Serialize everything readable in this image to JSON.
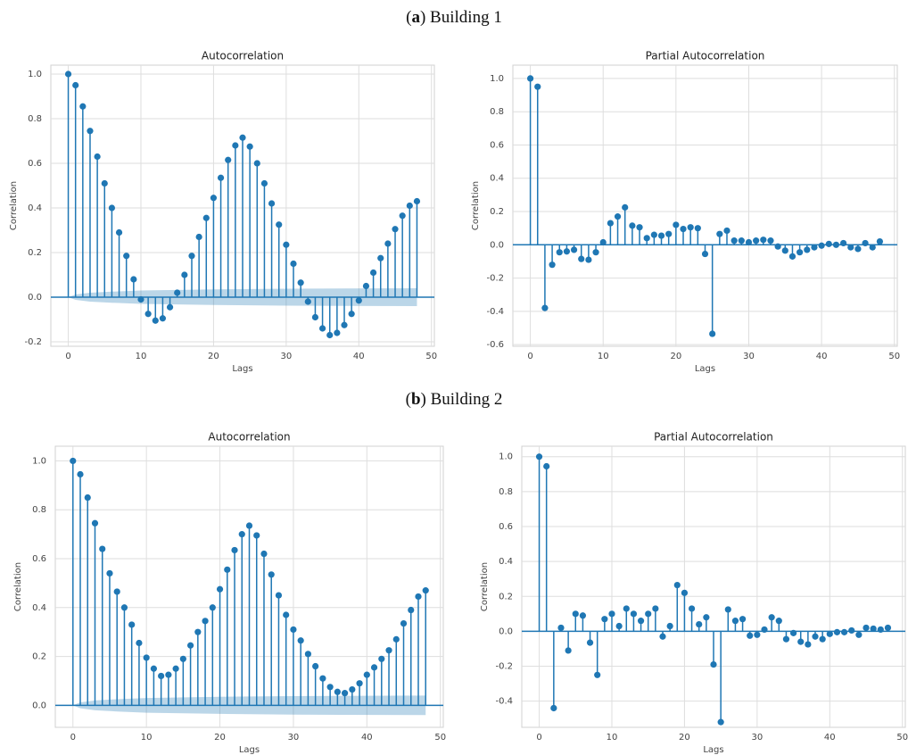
{
  "captions": [
    [
      "(",
      "a",
      ") Building 1"
    ],
    [
      "(",
      "b",
      ") Building 2"
    ]
  ],
  "chart_data": [
    {
      "type": "stem",
      "title": "Autocorrelation",
      "xlabel": "Lags",
      "ylabel": "Correlation",
      "color": "#1f77b4",
      "grid": true,
      "x": [
        0,
        1,
        2,
        3,
        4,
        5,
        6,
        7,
        8,
        9,
        10,
        11,
        12,
        13,
        14,
        15,
        16,
        17,
        18,
        19,
        20,
        21,
        22,
        23,
        24,
        25,
        26,
        27,
        28,
        29,
        30,
        31,
        32,
        33,
        34,
        35,
        36,
        37,
        38,
        39,
        40,
        41,
        42,
        43,
        44,
        45,
        46,
        47,
        48
      ],
      "values": [
        1.0,
        0.95,
        0.855,
        0.745,
        0.63,
        0.51,
        0.4,
        0.29,
        0.185,
        0.08,
        -0.01,
        -0.075,
        -0.105,
        -0.095,
        -0.045,
        0.02,
        0.1,
        0.185,
        0.27,
        0.355,
        0.445,
        0.535,
        0.615,
        0.68,
        0.715,
        0.675,
        0.6,
        0.51,
        0.42,
        0.325,
        0.235,
        0.15,
        0.065,
        -0.02,
        -0.09,
        -0.14,
        -0.17,
        -0.16,
        -0.125,
        -0.075,
        -0.015,
        0.05,
        0.11,
        0.175,
        0.24,
        0.305,
        0.365,
        0.41,
        0.43
      ],
      "band": {
        "x": [
          0,
          1,
          3,
          6,
          10,
          20,
          30,
          48
        ],
        "half_width": [
          0.0,
          0.012,
          0.02,
          0.025,
          0.03,
          0.035,
          0.038,
          0.04
        ]
      },
      "xlim": [
        -2.4,
        50.4
      ],
      "ylim": [
        -0.22,
        1.04
      ],
      "xticks": [
        0,
        10,
        20,
        30,
        40,
        50
      ],
      "yticks": [
        -0.2,
        {
          "value": 0,
          "label": "0.0"
        },
        0.2,
        0.4,
        0.6,
        0.8,
        {
          "value": 1,
          "label": "1.0"
        }
      ]
    },
    {
      "type": "stem",
      "title": "Partial Autocorrelation",
      "xlabel": "Lags",
      "ylabel": "Correlation",
      "color": "#1f77b4",
      "grid": true,
      "x": [
        0,
        1,
        2,
        3,
        4,
        5,
        6,
        7,
        8,
        9,
        10,
        11,
        12,
        13,
        14,
        15,
        16,
        17,
        18,
        19,
        20,
        21,
        22,
        23,
        24,
        25,
        26,
        27,
        28,
        29,
        30,
        31,
        32,
        33,
        34,
        35,
        36,
        37,
        38,
        39,
        40,
        41,
        42,
        43,
        44,
        45,
        46,
        47,
        48
      ],
      "values": [
        1.0,
        0.95,
        -0.38,
        -0.12,
        -0.045,
        -0.04,
        -0.03,
        -0.085,
        -0.09,
        -0.045,
        0.015,
        0.13,
        0.17,
        0.225,
        0.115,
        0.105,
        0.04,
        0.06,
        0.055,
        0.065,
        0.12,
        0.095,
        0.105,
        0.1,
        -0.055,
        -0.535,
        0.065,
        0.085,
        0.025,
        0.025,
        0.015,
        0.025,
        0.03,
        0.025,
        -0.01,
        -0.035,
        -0.07,
        -0.045,
        -0.03,
        -0.015,
        -0.005,
        0.005,
        0.0,
        0.01,
        -0.015,
        -0.025,
        0.01,
        -0.015,
        0.02
      ],
      "xlim": [
        -2.4,
        50.4
      ],
      "ylim": [
        -0.61,
        1.08
      ],
      "xticks": [
        0,
        10,
        20,
        30,
        40,
        50
      ],
      "yticks": [
        -0.6,
        -0.4,
        -0.2,
        {
          "value": 0,
          "label": "0.0"
        },
        0.2,
        0.4,
        0.6,
        0.8,
        {
          "value": 1,
          "label": "1.0"
        }
      ]
    },
    {
      "type": "stem",
      "title": "Autocorrelation",
      "xlabel": "Lags",
      "ylabel": "Correlation",
      "color": "#1f77b4",
      "grid": true,
      "x": [
        0,
        1,
        2,
        3,
        4,
        5,
        6,
        7,
        8,
        9,
        10,
        11,
        12,
        13,
        14,
        15,
        16,
        17,
        18,
        19,
        20,
        21,
        22,
        23,
        24,
        25,
        26,
        27,
        28,
        29,
        30,
        31,
        32,
        33,
        34,
        35,
        36,
        37,
        38,
        39,
        40,
        41,
        42,
        43,
        44,
        45,
        46,
        47,
        48
      ],
      "values": [
        1.0,
        0.945,
        0.85,
        0.745,
        0.64,
        0.54,
        0.465,
        0.4,
        0.33,
        0.255,
        0.195,
        0.15,
        0.12,
        0.125,
        0.15,
        0.19,
        0.245,
        0.3,
        0.345,
        0.4,
        0.475,
        0.555,
        0.635,
        0.7,
        0.735,
        0.695,
        0.62,
        0.535,
        0.45,
        0.37,
        0.31,
        0.265,
        0.21,
        0.16,
        0.11,
        0.075,
        0.055,
        0.05,
        0.065,
        0.09,
        0.125,
        0.155,
        0.19,
        0.225,
        0.27,
        0.335,
        0.39,
        0.445,
        0.47
      ],
      "band": {
        "x": [
          0,
          1,
          3,
          6,
          10,
          20,
          30,
          48
        ],
        "half_width": [
          0.0,
          0.012,
          0.02,
          0.025,
          0.03,
          0.035,
          0.038,
          0.04
        ]
      },
      "xlim": [
        -2.4,
        50.4
      ],
      "ylim": [
        -0.09,
        1.06
      ],
      "xticks": [
        0,
        10,
        20,
        30,
        40,
        50
      ],
      "yticks": [
        {
          "value": 0,
          "label": "0.0"
        },
        0.2,
        0.4,
        0.6,
        0.8,
        {
          "value": 1,
          "label": "1.0"
        }
      ]
    },
    {
      "type": "stem",
      "title": "Partial Autocorrelation",
      "xlabel": "Lags",
      "ylabel": "Correlation",
      "color": "#1f77b4",
      "grid": true,
      "x": [
        0,
        1,
        2,
        3,
        4,
        5,
        6,
        7,
        8,
        9,
        10,
        11,
        12,
        13,
        14,
        15,
        16,
        17,
        18,
        19,
        20,
        21,
        22,
        23,
        24,
        25,
        26,
        27,
        28,
        29,
        30,
        31,
        32,
        33,
        34,
        35,
        36,
        37,
        38,
        39,
        40,
        41,
        42,
        43,
        44,
        45,
        46,
        47,
        48
      ],
      "values": [
        1.0,
        0.945,
        -0.44,
        0.02,
        -0.11,
        0.1,
        0.09,
        -0.065,
        -0.25,
        0.07,
        0.1,
        0.03,
        0.13,
        0.1,
        0.06,
        0.1,
        0.13,
        -0.03,
        0.03,
        0.265,
        0.22,
        0.13,
        0.04,
        0.08,
        -0.19,
        -0.52,
        0.125,
        0.06,
        0.07,
        -0.025,
        -0.02,
        0.01,
        0.08,
        0.06,
        -0.045,
        -0.01,
        -0.06,
        -0.075,
        -0.03,
        -0.045,
        -0.015,
        -0.005,
        -0.005,
        0.005,
        -0.02,
        0.02,
        0.015,
        0.01,
        0.02
      ],
      "xlim": [
        -2.4,
        50.4
      ],
      "ylim": [
        -0.55,
        1.06
      ],
      "xticks": [
        0,
        10,
        20,
        30,
        40,
        50
      ],
      "yticks": [
        -0.4,
        -0.2,
        {
          "value": 0,
          "label": "0.0"
        },
        0.2,
        0.4,
        0.6,
        0.8,
        {
          "value": 1,
          "label": "1.0"
        }
      ]
    }
  ]
}
